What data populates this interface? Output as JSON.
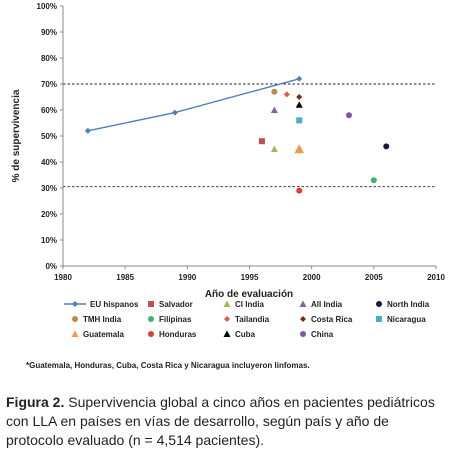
{
  "chart_data": {
    "type": "scatter",
    "xlabel": "Año de evaluación",
    "ylabel": "% de supervivencia",
    "xlim": [
      1980,
      2010
    ],
    "ylim": [
      0,
      100
    ],
    "xticks": [
      1980,
      1985,
      1990,
      1995,
      2000,
      2005,
      2010
    ],
    "yticks": [
      "0%",
      "10%",
      "20%",
      "30%",
      "40%",
      "50%",
      "60%",
      "70%",
      "80%",
      "90%",
      "100%"
    ],
    "reference_lines": [
      70,
      30.5
    ],
    "legend_position": "bottom",
    "series": [
      {
        "name": "EU hispanos",
        "marker": "diamond",
        "line": true,
        "color": "#4f81bd",
        "points": [
          [
            1982,
            52
          ],
          [
            1989,
            59
          ],
          [
            1999,
            72
          ]
        ]
      },
      {
        "name": "Salvador",
        "marker": "square",
        "color": "#c0504d",
        "points": [
          [
            1996,
            48
          ]
        ]
      },
      {
        "name": "CI India",
        "marker": "triangle",
        "color": "#9bbb59",
        "points": [
          [
            1997,
            45
          ]
        ]
      },
      {
        "name": "All  India",
        "marker": "triangle",
        "color": "#8064a2",
        "points": [
          [
            1997,
            60
          ]
        ]
      },
      {
        "name": "North India",
        "marker": "circle",
        "color": "#0f1b3e",
        "points": [
          [
            2006,
            46
          ]
        ]
      },
      {
        "name": "TMH India",
        "marker": "circle",
        "color": "#b88a4e",
        "points": [
          [
            1997,
            67
          ]
        ]
      },
      {
        "name": "Filipinas",
        "marker": "circle",
        "color": "#3cb371",
        "points": [
          [
            2005,
            33
          ]
        ]
      },
      {
        "name": "Tailandia",
        "marker": "diamond",
        "color": "#e2583e",
        "points": [
          [
            1998,
            66
          ]
        ]
      },
      {
        "name": "Costa Rica",
        "marker": "diamond",
        "color": "#7a2a1e",
        "points": [
          [
            1999,
            65
          ]
        ]
      },
      {
        "name": "Nicaragua",
        "marker": "square",
        "color": "#4bacc6",
        "points": [
          [
            1999,
            56
          ]
        ]
      },
      {
        "name": "Guatemala",
        "marker": "triangle",
        "color": "#f79646",
        "points": [
          [
            1999,
            45
          ]
        ]
      },
      {
        "name": "Honduras",
        "marker": "circle",
        "color": "#e03c31",
        "points": [
          [
            1999,
            29
          ]
        ]
      },
      {
        "name": "Cuba",
        "marker": "triangle",
        "color": "#000000",
        "points": [
          [
            1999,
            62
          ]
        ]
      },
      {
        "name": "China",
        "marker": "circle",
        "color": "#7e57a8",
        "points": [
          [
            2003,
            58
          ]
        ]
      }
    ]
  },
  "footnote": "*Guatemala, Honduras, Cuba, Costa Rica y Nicaragua incluyeron linfomas.",
  "caption": {
    "label": "Figura 2.",
    "text": " Supervivencia global a cinco años en pacientes pediátricos con LLA en países en vías de desarrollo, según país y año de protocolo evaluado (n = 4,514 pacientes)."
  }
}
